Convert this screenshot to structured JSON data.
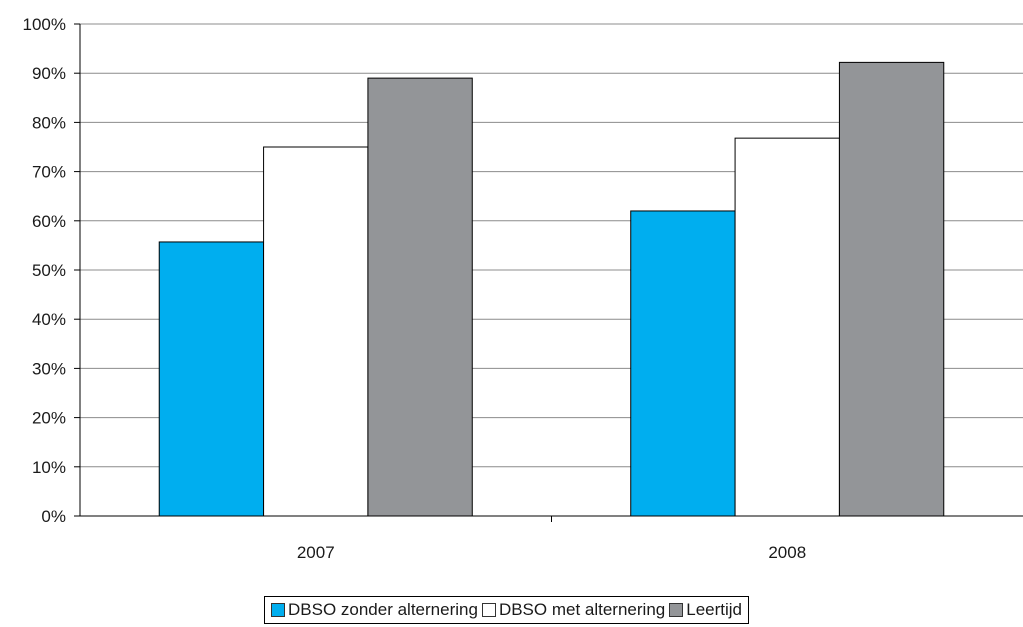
{
  "chart_data": {
    "type": "bar",
    "categories": [
      "2007",
      "2008"
    ],
    "series": [
      {
        "name": "DBSO zonder alternering",
        "values": [
          55.7,
          62.0
        ],
        "color": "#00aeef"
      },
      {
        "name": "DBSO met alternering",
        "values": [
          75.0,
          76.8
        ],
        "color": "#ffffff"
      },
      {
        "name": "Leertijd",
        "values": [
          89.0,
          92.2
        ],
        "color": "#939598"
      }
    ],
    "ylim": [
      0,
      100
    ],
    "yticks": [
      "0%",
      "10%",
      "20%",
      "30%",
      "40%",
      "50%",
      "60%",
      "70%",
      "80%",
      "90%",
      "100%"
    ],
    "grid": true,
    "legend_position": "bottom"
  }
}
